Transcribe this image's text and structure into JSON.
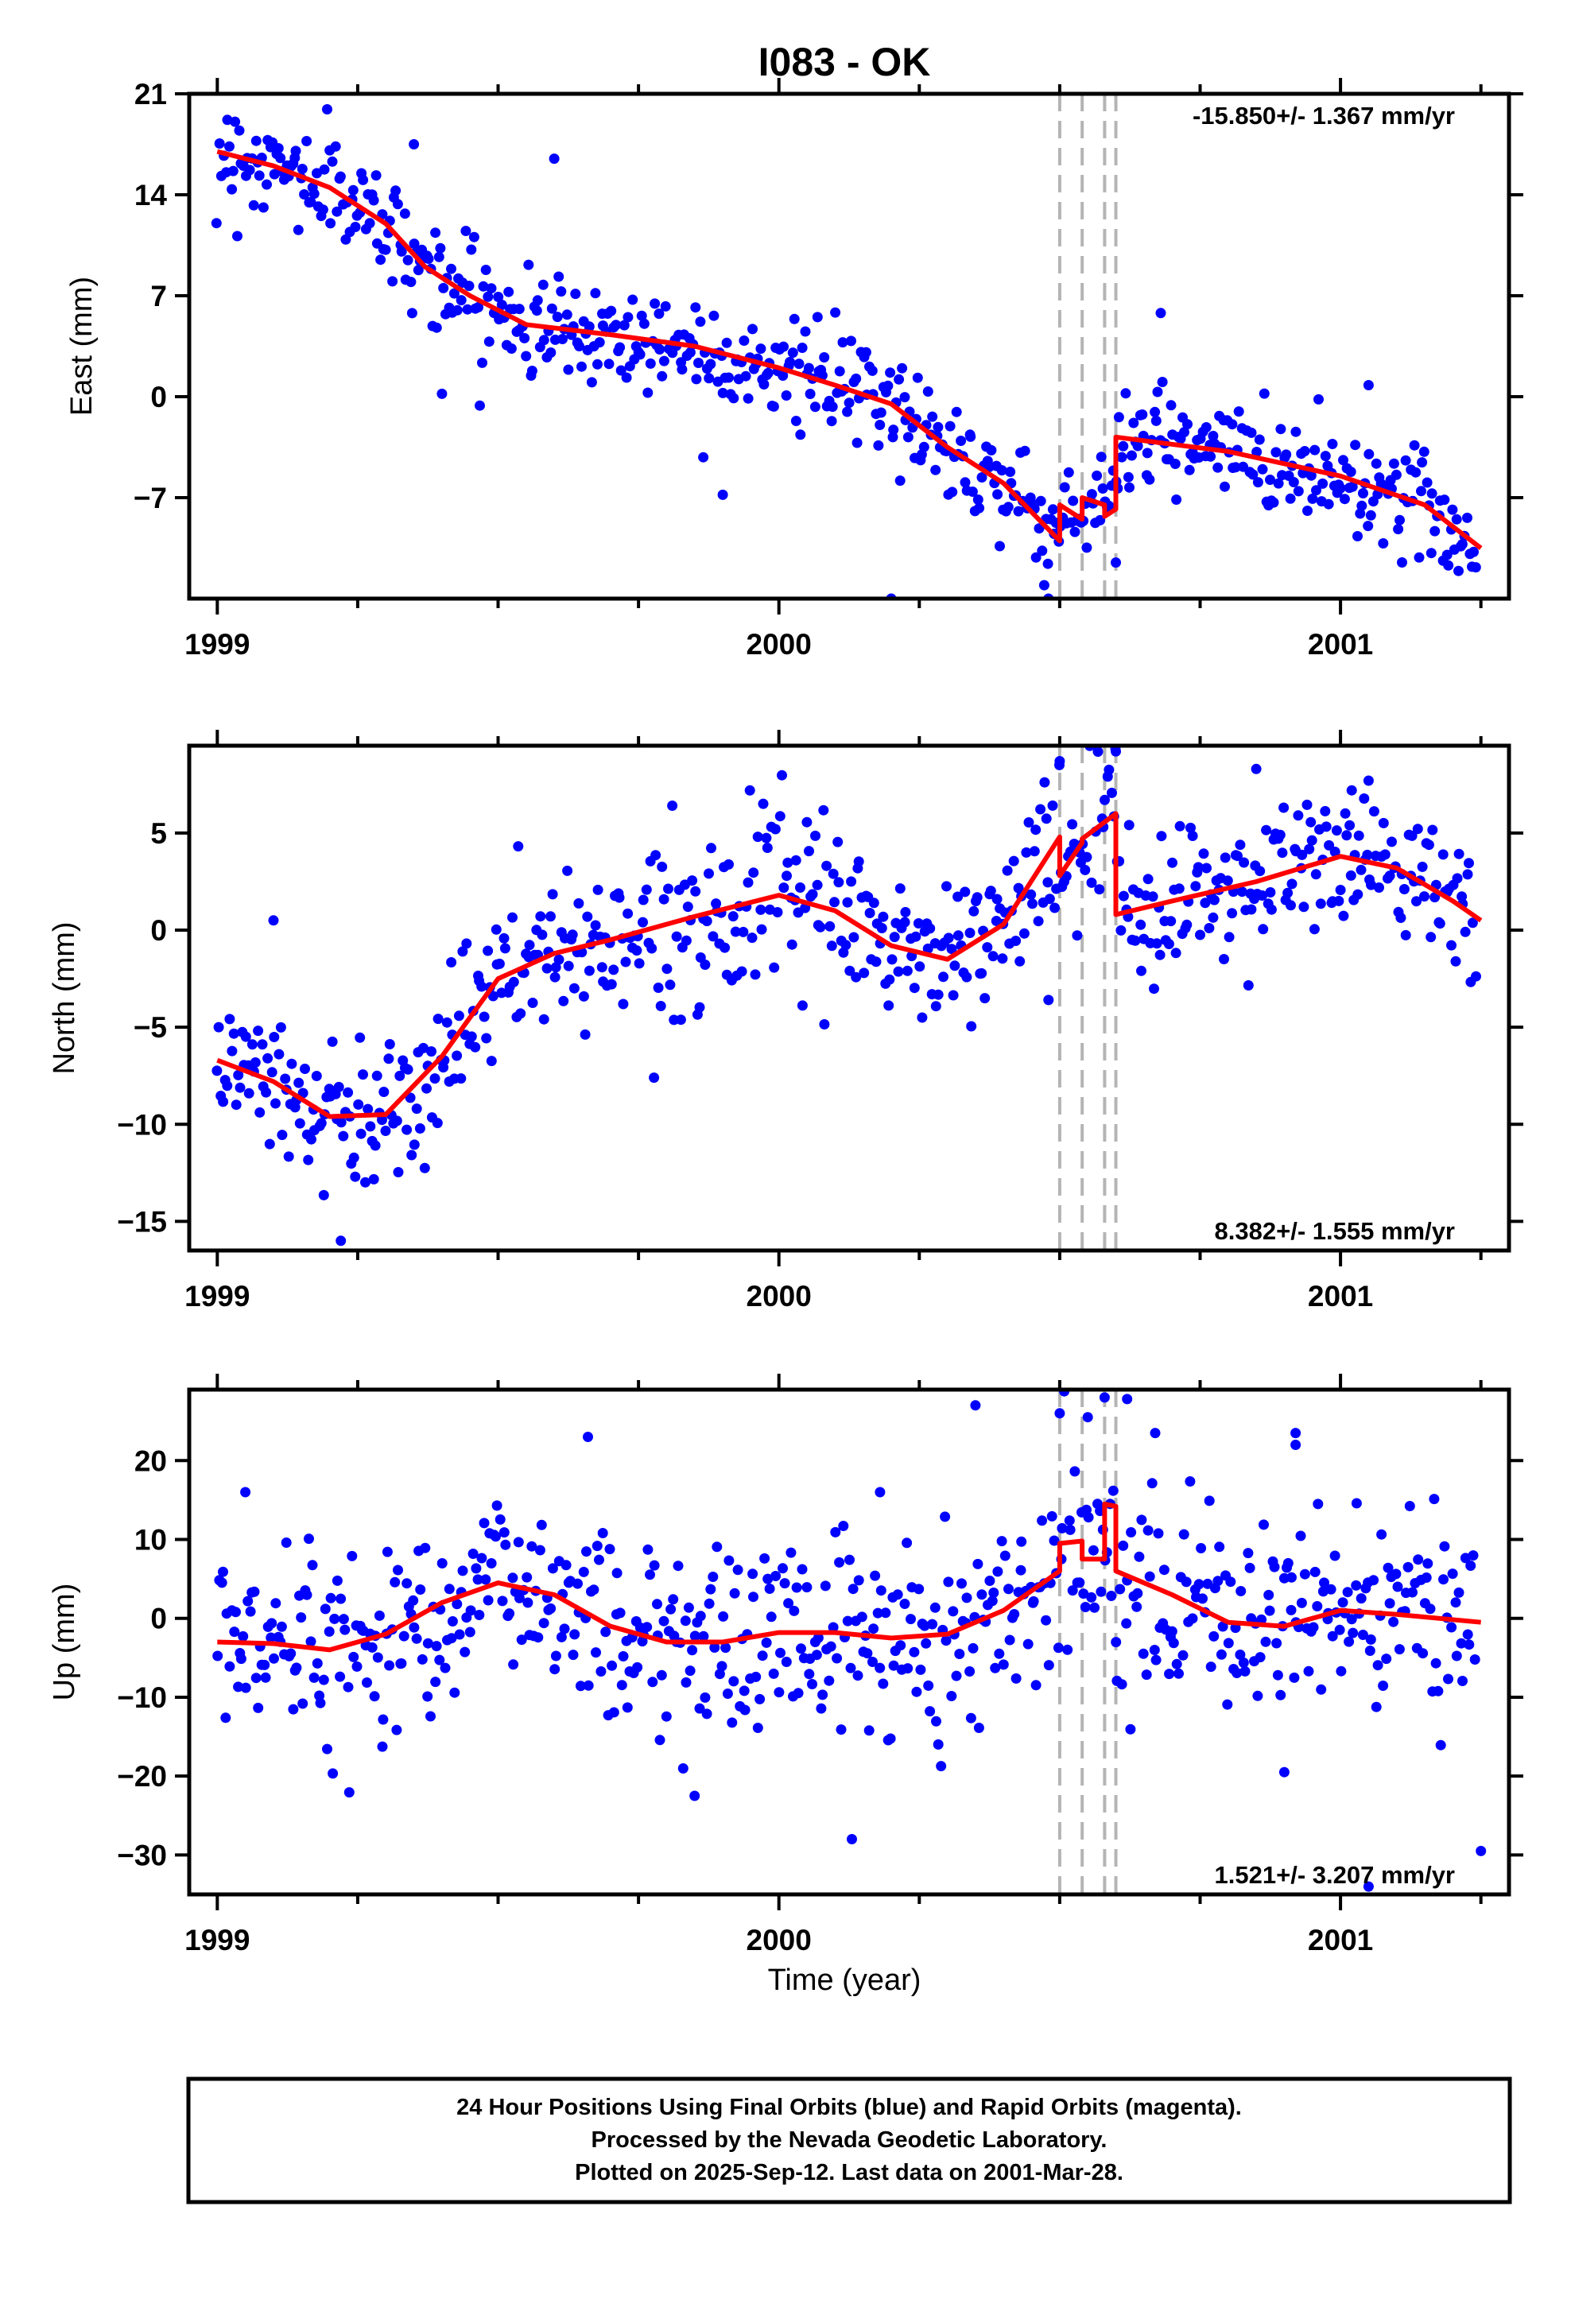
{
  "chart_data": {
    "type": "scatter",
    "title": "I083 - OK",
    "xlabel": "Time (year)",
    "x_ticks": [
      1999,
      2000,
      2001
    ],
    "xlim": [
      1998.95,
      2001.3
    ],
    "offset_epochs": [
      2000.5,
      2000.54,
      2000.58,
      2000.6
    ],
    "colors": {
      "points": "#0000ff",
      "fit": "#ff0000",
      "offsets": "#b4b4b4"
    },
    "panels": [
      {
        "id": "east",
        "ylabel": "East (mm)",
        "ylim": [
          -14,
          21
        ],
        "yticks": [
          21,
          14,
          7,
          0,
          -7
        ],
        "rate_text": "-15.850+/- 1.367 mm/yr",
        "rate_position": "top-right",
        "noise": 1.8,
        "fit": [
          [
            1999.0,
            17
          ],
          [
            1999.1,
            16
          ],
          [
            1999.2,
            14.5
          ],
          [
            1999.3,
            12
          ],
          [
            1999.37,
            9
          ],
          [
            1999.45,
            7
          ],
          [
            1999.55,
            5
          ],
          [
            1999.7,
            4.3
          ],
          [
            1999.85,
            3.5
          ],
          [
            2000.0,
            2
          ],
          [
            2000.1,
            0.8
          ],
          [
            2000.2,
            -0.5
          ],
          [
            2000.3,
            -3.5
          ],
          [
            2000.4,
            -6
          ],
          [
            2000.5,
            -10
          ],
          [
            2000.5,
            -7.5
          ],
          [
            2000.54,
            -8.5
          ],
          [
            2000.54,
            -7
          ],
          [
            2000.58,
            -7.5
          ],
          [
            2000.58,
            -8.3
          ],
          [
            2000.6,
            -7.8
          ],
          [
            2000.6,
            -2.8
          ],
          [
            2000.8,
            -3.8
          ],
          [
            2001.0,
            -5.5
          ],
          [
            2001.15,
            -7.5
          ],
          [
            2001.25,
            -10.5
          ]
        ],
        "outliers": [
          [
            1999.6,
            16.5
          ],
          [
            1999.35,
            17.5
          ],
          [
            1999.4,
            0.2
          ],
          [
            1999.9,
            -6.8
          ],
          [
            2000.2,
            -14
          ],
          [
            2000.48,
            -14
          ],
          [
            2000.68,
            5.8
          ],
          [
            2001.05,
            0.8
          ],
          [
            2000.6,
            -11.5
          ]
        ]
      },
      {
        "id": "north",
        "ylabel": "North (mm)",
        "ylim": [
          -16.5,
          9.5
        ],
        "yticks": [
          5,
          0,
          -5,
          -10,
          -15
        ],
        "rate_text": "8.382+/- 1.555 mm/yr",
        "rate_position": "bottom-right",
        "noise": 2.0,
        "fit": [
          [
            1999.0,
            -6.7
          ],
          [
            1999.1,
            -7.8
          ],
          [
            1999.2,
            -9.6
          ],
          [
            1999.3,
            -9.5
          ],
          [
            1999.4,
            -6.5
          ],
          [
            1999.5,
            -2.5
          ],
          [
            1999.6,
            -1.2
          ],
          [
            1999.7,
            -0.5
          ],
          [
            1999.85,
            0.7
          ],
          [
            2000.0,
            1.8
          ],
          [
            2000.1,
            1
          ],
          [
            2000.2,
            -0.8
          ],
          [
            2000.3,
            -1.5
          ],
          [
            2000.4,
            0.3
          ],
          [
            2000.5,
            4.8
          ],
          [
            2000.5,
            2.8
          ],
          [
            2000.54,
            4.5
          ],
          [
            2000.54,
            4.7
          ],
          [
            2000.6,
            6
          ],
          [
            2000.6,
            0.8
          ],
          [
            2000.7,
            1.5
          ],
          [
            2000.85,
            2.5
          ],
          [
            2001.0,
            3.8
          ],
          [
            2001.1,
            3.2
          ],
          [
            2001.2,
            1.5
          ],
          [
            2001.25,
            0.5
          ]
        ],
        "outliers": [
          [
            1999.1,
            0.5
          ],
          [
            2000.48,
            -3.6
          ],
          [
            1999.22,
            -16
          ],
          [
            2000.6,
            9.2
          ],
          [
            2000.5,
            8.7
          ],
          [
            2000.85,
            8.3
          ],
          [
            2001.05,
            7.7
          ],
          [
            2001.02,
            7.2
          ]
        ]
      },
      {
        "id": "up",
        "ylabel": "Up (mm)",
        "ylim": [
          -35,
          29
        ],
        "yticks": [
          20,
          10,
          0,
          -10,
          -20,
          -30
        ],
        "rate_text": "1.521+/- 3.207 mm/yr",
        "rate_position": "bottom-right",
        "noise": 6.0,
        "fit": [
          [
            1999.0,
            -3
          ],
          [
            1999.1,
            -3.2
          ],
          [
            1999.2,
            -4
          ],
          [
            1999.3,
            -2
          ],
          [
            1999.4,
            2
          ],
          [
            1999.5,
            4.5
          ],
          [
            1999.6,
            3
          ],
          [
            1999.7,
            -1
          ],
          [
            1999.8,
            -3
          ],
          [
            1999.9,
            -3
          ],
          [
            2000.0,
            -1.8
          ],
          [
            2000.1,
            -1.8
          ],
          [
            2000.2,
            -2.5
          ],
          [
            2000.3,
            -2
          ],
          [
            2000.4,
            1
          ],
          [
            2000.5,
            6
          ],
          [
            2000.5,
            9.5
          ],
          [
            2000.54,
            9.8
          ],
          [
            2000.54,
            7.5
          ],
          [
            2000.58,
            7.5
          ],
          [
            2000.58,
            14.5
          ],
          [
            2000.6,
            14.2
          ],
          [
            2000.6,
            6
          ],
          [
            2000.7,
            3
          ],
          [
            2000.8,
            -0.5
          ],
          [
            2000.9,
            -1
          ],
          [
            2001.0,
            1
          ],
          [
            2001.1,
            0.5
          ],
          [
            2001.25,
            -0.5
          ]
        ],
        "outliers": [
          [
            1999.66,
            23
          ],
          [
            2000.13,
            -28
          ],
          [
            2001.05,
            -34
          ],
          [
            2001.25,
            -29.5
          ],
          [
            2000.35,
            27
          ],
          [
            2000.5,
            26
          ],
          [
            2000.55,
            25.5
          ],
          [
            2000.58,
            28
          ],
          [
            2000.62,
            27.8
          ],
          [
            2000.67,
            23.5
          ],
          [
            1999.85,
            -22.5
          ],
          [
            2000.9,
            -19.5
          ],
          [
            1999.05,
            16
          ],
          [
            2000.18,
            16
          ],
          [
            2000.92,
            23.5
          ],
          [
            2000.92,
            22
          ]
        ]
      }
    ]
  },
  "footer": {
    "line1": "24 Hour Positions Using Final Orbits (blue) and Rapid Orbits (magenta).",
    "line2": "Processed by the Nevada Geodetic Laboratory.",
    "line3": "Plotted on 2025-Sep-12. Last data on 2001-Mar-28."
  }
}
